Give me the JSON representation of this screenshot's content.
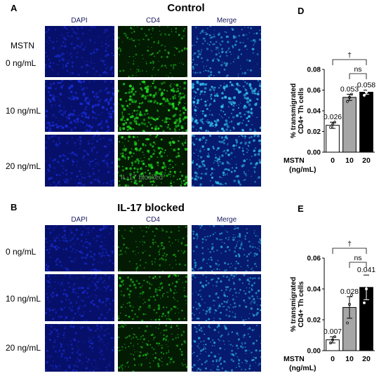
{
  "panel_a": {
    "letter": "A",
    "title": "Control",
    "column_headers": [
      "DAPI",
      "CD4",
      "Merge"
    ],
    "row_header_top": "MSTN",
    "rows": [
      "0 ng/mL",
      "10 ng/mL",
      "20 ng/mL"
    ],
    "overlay_text": "IL-17 blocked"
  },
  "panel_b": {
    "letter": "B",
    "title": "IL-17 blocked",
    "column_headers": [
      "DAPI",
      "CD4",
      "Merge"
    ],
    "rows": [
      "0 ng/mL",
      "10 ng/mL",
      "20 ng/mL"
    ]
  },
  "colors": {
    "dapi": "#1a2bd6",
    "cd4": "#1fd21f",
    "merge": "#2fb6e8",
    "bar_0": "#ffffff",
    "bar_10": "#a6a6a6",
    "bar_20": "#000000"
  },
  "chart_data": [
    {
      "panel": "D",
      "type": "bar",
      "categories": [
        "0",
        "10",
        "20"
      ],
      "values": [
        0.026,
        0.053,
        0.058
      ],
      "value_labels": [
        "0.026",
        "0.053",
        "0.058"
      ],
      "ylabel": "% transmigrated CD4+ Th cells",
      "xlabel": "MSTN (ng/mL)",
      "xlabel_lines": [
        "MSTN",
        "(ng/mL)"
      ],
      "ylim": [
        0,
        0.08
      ],
      "yticks": [
        "0.00",
        "0.02",
        "0.04",
        "0.06",
        "0.08"
      ],
      "ytick_values": [
        0,
        0.02,
        0.04,
        0.06,
        0.08
      ],
      "error": [
        0.003,
        0.003,
        0.002
      ],
      "points": [
        [
          0.024,
          0.027,
          0.029
        ],
        [
          0.049,
          0.053,
          0.056
        ],
        [
          0.055,
          0.058,
          0.06
        ]
      ],
      "significance": [
        {
          "from": 0,
          "to": 2,
          "label": "†"
        },
        {
          "from": 1,
          "to": 2,
          "label": "ns"
        }
      ]
    },
    {
      "panel": "E",
      "type": "bar",
      "categories": [
        "0",
        "10",
        "20"
      ],
      "values": [
        0.007,
        0.028,
        0.041
      ],
      "value_labels": [
        "0.007",
        "0.028",
        "0.041"
      ],
      "ylabel": "% transmigrated CD4+ Th cells",
      "xlabel": "MSTN (ng/mL)",
      "xlabel_lines": [
        "MSTN",
        "(ng/mL)"
      ],
      "ylim": [
        0,
        0.06
      ],
      "yticks": [
        "0.00",
        "0.02",
        "0.04",
        "0.06"
      ],
      "ytick_values": [
        0,
        0.02,
        0.04,
        0.06
      ],
      "error": [
        0.002,
        0.007,
        0.008
      ],
      "points": [
        [
          0.005,
          0.007,
          0.009
        ],
        [
          0.018,
          0.03,
          0.036
        ],
        [
          0.031,
          0.04,
          0.052
        ]
      ],
      "significance": [
        {
          "from": 0,
          "to": 2,
          "label": "†"
        },
        {
          "from": 1,
          "to": 2,
          "label": "ns"
        }
      ]
    }
  ]
}
